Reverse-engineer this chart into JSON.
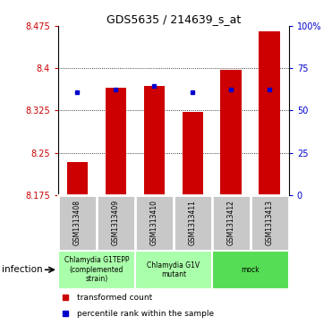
{
  "title": "GDS5635 / 214639_s_at",
  "samples": [
    "GSM1313408",
    "GSM1313409",
    "GSM1313410",
    "GSM1313411",
    "GSM1313412",
    "GSM1313413"
  ],
  "bar_values": [
    8.234,
    8.365,
    8.368,
    8.322,
    8.397,
    8.465
  ],
  "bar_base": 8.175,
  "percentile_values": [
    8.358,
    8.363,
    8.368,
    8.358,
    8.362,
    8.363
  ],
  "ylim": [
    8.175,
    8.475
  ],
  "yticks": [
    8.175,
    8.25,
    8.325,
    8.4,
    8.475
  ],
  "right_yticks": [
    0,
    25,
    50,
    75,
    100
  ],
  "right_ytick_labels": [
    "0",
    "25",
    "50",
    "75",
    "100%"
  ],
  "bar_color": "#cc0000",
  "dot_color": "#0000cc",
  "groups": [
    {
      "label": "Chlamydia G1TEPP\n(complemented\nstrain)",
      "start": 0,
      "end": 1,
      "color": "#aaffaa"
    },
    {
      "label": "Chlamydia G1V\nmutant",
      "start": 2,
      "end": 3,
      "color": "#aaffaa"
    },
    {
      "label": "mock",
      "start": 4,
      "end": 5,
      "color": "#55dd55"
    }
  ],
  "infection_label": "infection",
  "legend_items": [
    {
      "color": "#cc0000",
      "label": "transformed count"
    },
    {
      "color": "#0000cc",
      "label": "percentile rank within the sample"
    }
  ],
  "bg_color": "#ffffff",
  "sample_box_color": "#c8c8c8",
  "tick_color_left": "#cc0000",
  "tick_color_right": "#0000cc"
}
